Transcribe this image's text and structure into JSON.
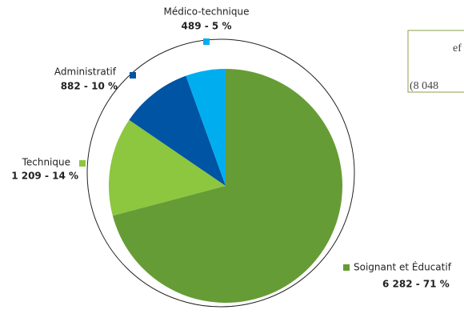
{
  "chart_data": {
    "type": "pie",
    "categories": [
      "Soignant et Éducatif",
      "Technique",
      "Administratif",
      "Médico-technique"
    ],
    "values": [
      6282,
      1209,
      882,
      489
    ],
    "value_labels": [
      "6 282 - 71 %",
      "1 209 - 14 %",
      "882 - 10 %",
      "489 - 5 %"
    ],
    "colors": [
      "#669c35",
      "#8dc63f",
      "#0054a4",
      "#00aeef"
    ],
    "annotations": [
      "ef",
      "(8 048"
    ]
  }
}
